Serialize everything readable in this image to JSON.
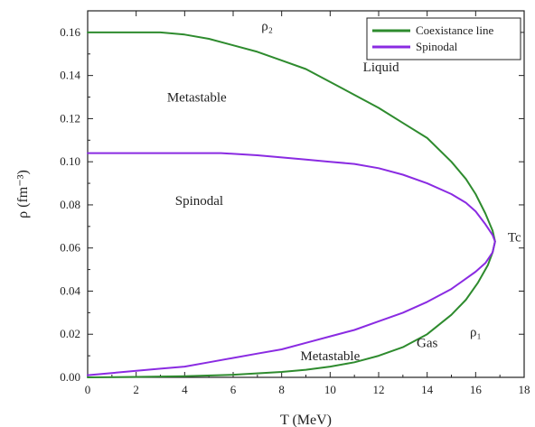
{
  "chart_data": {
    "type": "line",
    "xlabel": "T (MeV)",
    "ylabel": "ρ (fm⁻³)",
    "xlim": [
      0,
      18
    ],
    "ylim": [
      0.0,
      0.17
    ],
    "x_ticks": [
      0,
      2,
      4,
      6,
      8,
      10,
      12,
      14,
      16,
      18
    ],
    "x_tick_labels": [
      "0",
      "2",
      "4",
      "6",
      "8",
      "10",
      "12",
      "14",
      "16",
      "18"
    ],
    "y_ticks": [
      0.0,
      0.02,
      0.04,
      0.06,
      0.08,
      0.1,
      0.12,
      0.14,
      0.16
    ],
    "y_tick_labels": [
      "0.00",
      "0.02",
      "0.04",
      "0.06",
      "0.08",
      "0.10",
      "0.12",
      "0.14",
      "0.16"
    ],
    "legend_position": "top-right",
    "series": [
      {
        "name": "Coexistance line",
        "color": "#2e8b2e",
        "points": [
          [
            0.0,
            0.16
          ],
          [
            3.0,
            0.16
          ],
          [
            4.0,
            0.159
          ],
          [
            5.0,
            0.157
          ],
          [
            6.0,
            0.154
          ],
          [
            7.0,
            0.151
          ],
          [
            8.0,
            0.147
          ],
          [
            9.0,
            0.143
          ],
          [
            10.0,
            0.137
          ],
          [
            11.0,
            0.131
          ],
          [
            12.0,
            0.125
          ],
          [
            13.0,
            0.118
          ],
          [
            14.0,
            0.111
          ],
          [
            15.0,
            0.1
          ],
          [
            15.6,
            0.092
          ],
          [
            16.0,
            0.085
          ],
          [
            16.4,
            0.076
          ],
          [
            16.7,
            0.068
          ],
          [
            16.8,
            0.063
          ],
          [
            16.7,
            0.058
          ],
          [
            16.5,
            0.052
          ],
          [
            16.1,
            0.044
          ],
          [
            15.6,
            0.036
          ],
          [
            15.0,
            0.029
          ],
          [
            14.0,
            0.02
          ],
          [
            13.0,
            0.014
          ],
          [
            12.0,
            0.01
          ],
          [
            11.0,
            0.007
          ],
          [
            10.0,
            0.005
          ],
          [
            9.0,
            0.0035
          ],
          [
            8.0,
            0.0025
          ],
          [
            6.0,
            0.0012
          ],
          [
            4.0,
            0.0005
          ],
          [
            2.0,
            0.0002
          ],
          [
            0.0,
            0.0
          ]
        ]
      },
      {
        "name": "Spinodal",
        "color": "#8a2be2",
        "points": [
          [
            0.0,
            0.104
          ],
          [
            2.0,
            0.104
          ],
          [
            4.0,
            0.104
          ],
          [
            5.5,
            0.104
          ],
          [
            7.0,
            0.103
          ],
          [
            8.0,
            0.102
          ],
          [
            9.0,
            0.101
          ],
          [
            10.0,
            0.1
          ],
          [
            11.0,
            0.099
          ],
          [
            12.0,
            0.097
          ],
          [
            13.0,
            0.094
          ],
          [
            14.0,
            0.09
          ],
          [
            15.0,
            0.085
          ],
          [
            15.6,
            0.081
          ],
          [
            16.0,
            0.077
          ],
          [
            16.4,
            0.071
          ],
          [
            16.7,
            0.066
          ],
          [
            16.8,
            0.063
          ],
          [
            16.7,
            0.058
          ],
          [
            16.4,
            0.053
          ],
          [
            16.0,
            0.049
          ],
          [
            15.0,
            0.041
          ],
          [
            14.0,
            0.035
          ],
          [
            13.0,
            0.03
          ],
          [
            12.0,
            0.026
          ],
          [
            11.0,
            0.022
          ],
          [
            10.0,
            0.019
          ],
          [
            9.0,
            0.016
          ],
          [
            8.0,
            0.013
          ],
          [
            7.0,
            0.011
          ],
          [
            6.0,
            0.009
          ],
          [
            5.0,
            0.007
          ],
          [
            4.0,
            0.005
          ],
          [
            3.0,
            0.004
          ],
          [
            2.0,
            0.003
          ],
          [
            1.0,
            0.002
          ],
          [
            0.0,
            0.001
          ]
        ]
      }
    ],
    "annotations": [
      {
        "text": "ρ₂",
        "x": 7.4,
        "y": 0.161
      },
      {
        "text": "Liquid",
        "x": 12.1,
        "y": 0.142
      },
      {
        "text": "Metastable",
        "x": 4.5,
        "y": 0.128
      },
      {
        "text": "Spinodal",
        "x": 4.6,
        "y": 0.08
      },
      {
        "text": "Tc",
        "x": 17.6,
        "y": 0.063
      },
      {
        "text": "ρ₁",
        "x": 16.0,
        "y": 0.019
      },
      {
        "text": "Gas",
        "x": 14.0,
        "y": 0.014
      },
      {
        "text": "Metastable",
        "x": 10.0,
        "y": 0.008
      }
    ]
  }
}
